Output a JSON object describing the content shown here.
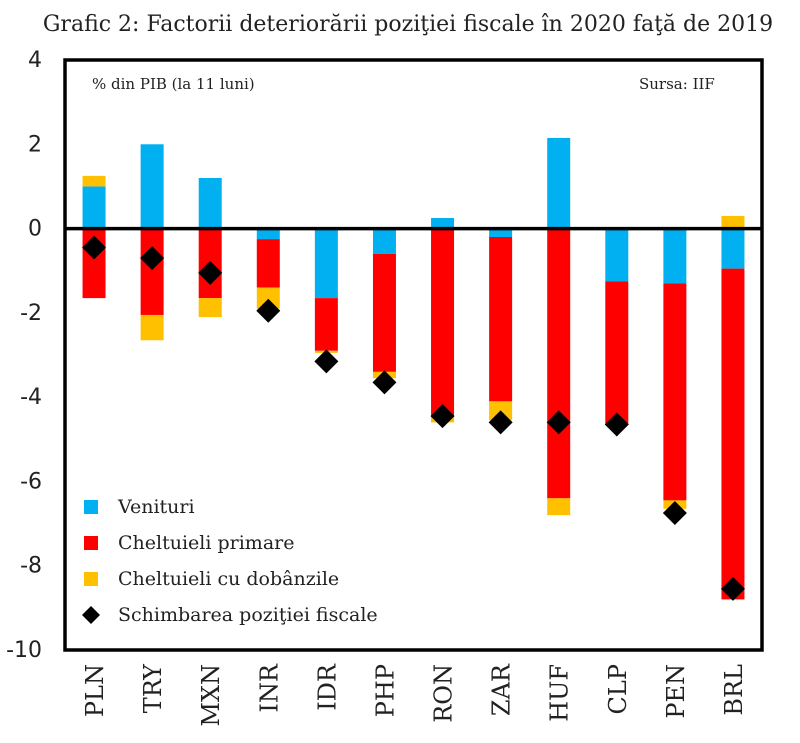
{
  "chart_data": {
    "type": "bar",
    "stacked": true,
    "title": "Grafic 2: Factorii deteriorării poziţiei fiscale în 2020 faţă de 2019",
    "unit_note": "% din PIB (la 11 luni)",
    "source_note": "Sursa: IIF",
    "ylim": [
      -10,
      4
    ],
    "yticks": [
      "4",
      "2",
      "0",
      "-2",
      "-4",
      "-6",
      "-8",
      "-10"
    ],
    "grid": false,
    "legend_position": "bottom-left",
    "categories": [
      "PLN",
      "TRY",
      "MXN",
      "INR",
      "IDR",
      "PHP",
      "RON",
      "ZAR",
      "HUF",
      "CLP",
      "PEN",
      "BRL"
    ],
    "series": [
      {
        "name": "Venituri",
        "color": "#00b0f0",
        "values": [
          1.0,
          2.0,
          1.2,
          -0.25,
          -1.65,
          -0.6,
          0.25,
          -0.2,
          2.15,
          -1.25,
          -1.3,
          -0.95
        ]
      },
      {
        "name": "Cheltuieli primare",
        "color": "#ff0000",
        "values": [
          -1.65,
          -2.05,
          -1.65,
          -1.15,
          -1.25,
          -2.8,
          -4.45,
          -3.9,
          -6.4,
          -3.4,
          -5.15,
          -7.85
        ]
      },
      {
        "name": "Cheltuieli cu dobânzile",
        "color": "#ffc000",
        "values": [
          0.25,
          -0.6,
          -0.45,
          -0.5,
          -0.05,
          -0.15,
          -0.15,
          -0.45,
          -0.4,
          0.0,
          -0.2,
          0.3
        ]
      }
    ],
    "markers": {
      "name": "Schimbarea poziţiei fiscale",
      "color": "#000000",
      "shape": "diamond",
      "values": [
        -0.45,
        -0.7,
        -1.05,
        -1.95,
        -3.15,
        -3.65,
        -4.45,
        -4.6,
        -4.6,
        -4.65,
        -6.75,
        -8.55
      ]
    }
  }
}
